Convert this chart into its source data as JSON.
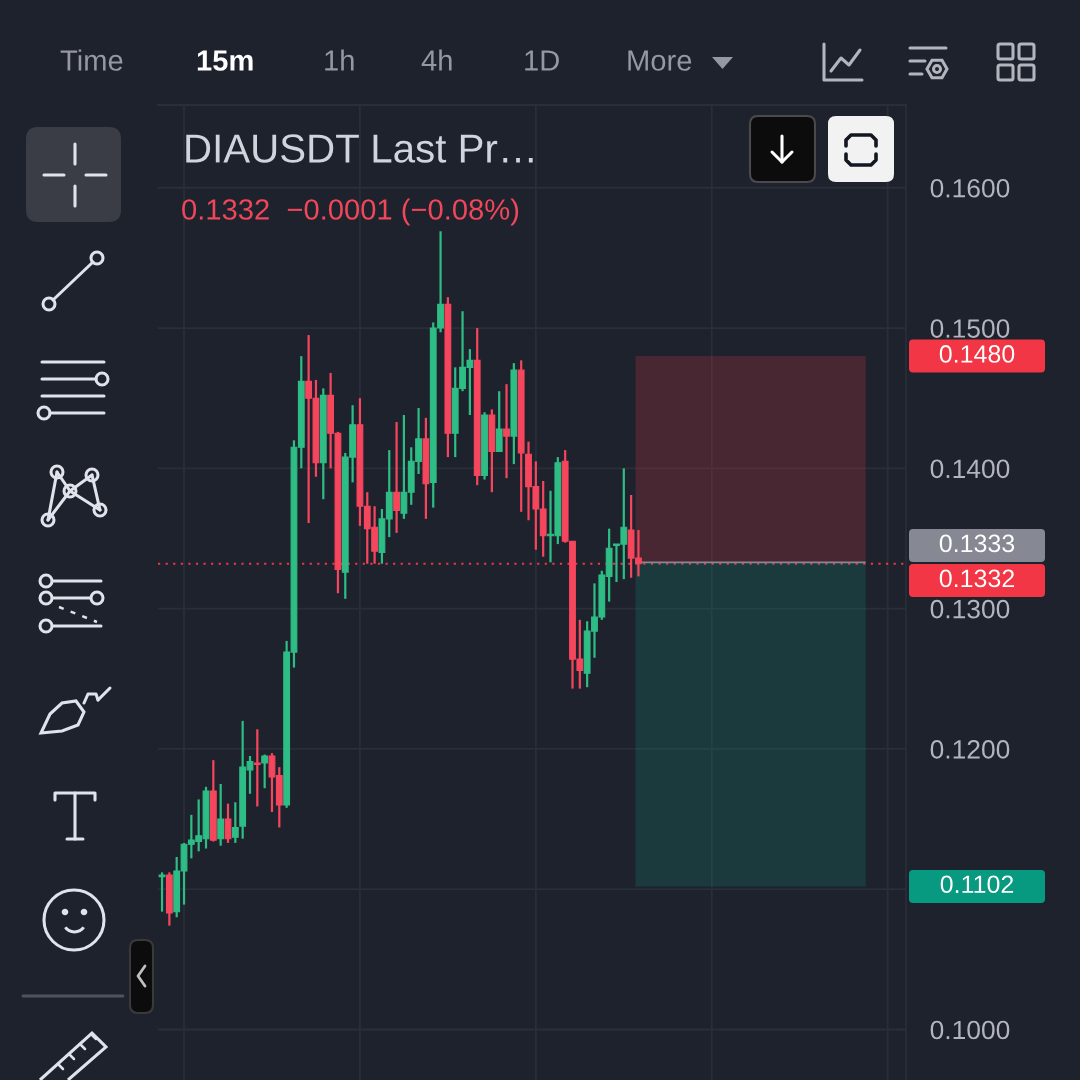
{
  "chart_data": {
    "type": "candlestick",
    "title": "DIAUSDT Last Pr…",
    "subtitle": "0.1332  −0.0001 (−0.08%)",
    "annotations": [
      "Time",
      "15m",
      "1h",
      "4h",
      "1D",
      "More"
    ],
    "categories": [
      null,
      null,
      null,
      null,
      null,
      null,
      null,
      null,
      null,
      null,
      null,
      null,
      null,
      null,
      null,
      null,
      null,
      null,
      null,
      null,
      null,
      null,
      null,
      null,
      null,
      null,
      null,
      null,
      null,
      null,
      null,
      null,
      null,
      null,
      null,
      null,
      null,
      null,
      null,
      null,
      null,
      null,
      null,
      null,
      null,
      null,
      null,
      null,
      null,
      null,
      null,
      null,
      null,
      null,
      null,
      null,
      null,
      null,
      null,
      null,
      null,
      null,
      null,
      null,
      null,
      null,
      null,
      null,
      null,
      null,
      null,
      null,
      null,
      null,
      null,
      null,
      null,
      null,
      null,
      null,
      null,
      null,
      null,
      null,
      null,
      null,
      null,
      null,
      null,
      null,
      null,
      null,
      null,
      null,
      null,
      null,
      null,
      null,
      null,
      null,
      null,
      null
    ],
    "ohlc": [
      [
        0.1109,
        0.1112,
        0.1084,
        0.111
      ],
      [
        0.111,
        0.1112,
        0.1074,
        0.1083
      ],
      [
        0.1084,
        0.1123,
        0.108,
        0.1113
      ],
      [
        0.1113,
        0.1133,
        0.1089,
        0.1132
      ],
      [
        0.1132,
        0.1153,
        0.1122,
        0.1135
      ],
      [
        0.1134,
        0.1164,
        0.1127,
        0.1138
      ],
      [
        0.1136,
        0.1173,
        0.1129,
        0.117
      ],
      [
        0.117,
        0.1192,
        0.1134,
        0.1135
      ],
      [
        0.1136,
        0.1175,
        0.1131,
        0.115
      ],
      [
        0.115,
        0.1161,
        0.1133,
        0.1136
      ],
      [
        0.1137,
        0.1162,
        0.1133,
        0.1144
      ],
      [
        0.1145,
        0.122,
        0.1136,
        0.1187
      ],
      [
        0.1185,
        0.1195,
        0.1168,
        0.1191
      ],
      [
        0.119,
        0.1214,
        0.1159,
        0.1189
      ],
      [
        0.119,
        0.1196,
        0.1172,
        0.1195
      ],
      [
        0.1195,
        0.1197,
        0.1155,
        0.118
      ],
      [
        0.1181,
        0.1187,
        0.1144,
        0.116
      ],
      [
        0.116,
        0.1277,
        0.1158,
        0.1269
      ],
      [
        0.1269,
        0.142,
        0.1258,
        0.1415
      ],
      [
        0.1415,
        0.148,
        0.14,
        0.1462
      ],
      [
        0.1462,
        0.1495,
        0.1361,
        0.145
      ],
      [
        0.145,
        0.1463,
        0.1394,
        0.1404
      ],
      [
        0.1404,
        0.1457,
        0.1378,
        0.1452
      ],
      [
        0.1452,
        0.1468,
        0.14,
        0.1425
      ],
      [
        0.1425,
        0.1426,
        0.1311,
        0.1328
      ],
      [
        0.1326,
        0.1411,
        0.1307,
        0.1408
      ],
      [
        0.1408,
        0.1445,
        0.139,
        0.1431
      ],
      [
        0.1431,
        0.145,
        0.1359,
        0.1373
      ],
      [
        0.1373,
        0.1383,
        0.1332,
        0.1357
      ],
      [
        0.1358,
        0.1373,
        0.1332,
        0.1341
      ],
      [
        0.134,
        0.1371,
        0.1332,
        0.1364
      ],
      [
        0.1364,
        0.1413,
        0.1351,
        0.1383
      ],
      [
        0.1383,
        0.1433,
        0.1354,
        0.137
      ],
      [
        0.1368,
        0.1438,
        0.1364,
        0.1383
      ],
      [
        0.1383,
        0.1415,
        0.1374,
        0.1405
      ],
      [
        0.1405,
        0.1443,
        0.1396,
        0.1421
      ],
      [
        0.1421,
        0.1436,
        0.1364,
        0.1389
      ],
      [
        0.139,
        0.1504,
        0.1372,
        0.15
      ],
      [
        0.15,
        0.1569,
        0.1497,
        0.1517
      ],
      [
        0.1517,
        0.1522,
        0.1408,
        0.1425
      ],
      [
        0.1425,
        0.1472,
        0.1408,
        0.1457
      ],
      [
        0.1457,
        0.1512,
        0.1455,
        0.1472
      ],
      [
        0.1472,
        0.1485,
        0.1438,
        0.1477
      ],
      [
        0.1477,
        0.15,
        0.1388,
        0.1395
      ],
      [
        0.1395,
        0.144,
        0.1392,
        0.1438
      ],
      [
        0.1438,
        0.1442,
        0.1383,
        0.1412
      ],
      [
        0.1412,
        0.1455,
        0.1412,
        0.1428
      ],
      [
        0.1428,
        0.146,
        0.1393,
        0.1423
      ],
      [
        0.1423,
        0.1475,
        0.1403,
        0.147
      ],
      [
        0.147,
        0.1477,
        0.1369,
        0.1411
      ],
      [
        0.141,
        0.1419,
        0.1363,
        0.1387
      ],
      [
        0.1387,
        0.1405,
        0.1342,
        0.1371
      ],
      [
        0.1371,
        0.1391,
        0.1337,
        0.1352
      ],
      [
        0.1352,
        0.1384,
        0.1333,
        0.1353
      ],
      [
        0.1352,
        0.1408,
        0.1346,
        0.1404
      ],
      [
        0.1405,
        0.1413,
        0.1347,
        0.1348
      ],
      [
        0.1348,
        0.1348,
        0.1243,
        0.1264
      ],
      [
        0.1264,
        0.1292,
        0.1243,
        0.1256
      ],
      [
        0.1254,
        0.1291,
        0.1244,
        0.1284
      ],
      [
        0.1284,
        0.1318,
        0.1265,
        0.1294
      ],
      [
        0.1294,
        0.1327,
        0.1292,
        0.1324
      ],
      [
        0.1323,
        0.1357,
        0.1305,
        0.1343
      ],
      [
        0.1345,
        0.1346,
        0.1319,
        0.1346
      ],
      [
        0.1346,
        0.14,
        0.1321,
        0.1358
      ],
      [
        0.1356,
        0.1381,
        0.1322,
        0.1336
      ],
      [
        0.1336,
        0.1356,
        0.1323,
        0.1332
      ],
      null,
      null,
      null,
      null,
      null,
      null,
      null,
      null,
      null,
      null,
      null,
      null,
      null,
      null,
      null,
      null,
      null,
      null,
      null,
      null,
      null,
      null,
      null,
      null,
      null,
      null,
      null,
      null,
      null,
      null,
      null,
      null,
      null,
      null,
      null,
      null
    ],
    "colors": [
      "#2ebd85",
      "#f6465d",
      "#2ebd85",
      "#2ebd85",
      "#2ebd85",
      "#2ebd85",
      "#2ebd85",
      "#f6465d",
      "#2ebd85",
      "#f6465d",
      "#2ebd85",
      "#2ebd85",
      "#2ebd85",
      "#f6465d",
      "#2ebd85",
      "#f6465d",
      "#f6465d",
      "#2ebd85",
      "#2ebd85",
      "#2ebd85",
      "#f6465d",
      "#f6465d",
      "#2ebd85",
      "#f6465d",
      "#f6465d",
      "#2ebd85",
      "#2ebd85",
      "#f6465d",
      "#f6465d",
      "#f6465d",
      "#2ebd85",
      "#2ebd85",
      "#f6465d",
      "#2ebd85",
      "#2ebd85",
      "#2ebd85",
      "#f6465d",
      "#2ebd85",
      "#2ebd85",
      "#f6465d",
      "#2ebd85",
      "#2ebd85",
      "#2ebd85",
      "#f6465d",
      "#2ebd85",
      "#f6465d",
      "#2ebd85",
      "#f6465d",
      "#2ebd85",
      "#f6465d",
      "#f6465d",
      "#f6465d",
      "#f6465d",
      "#2ebd85",
      "#2ebd85",
      "#f6465d",
      "#f6465d",
      "#f6465d",
      "#2ebd85",
      "#2ebd85",
      "#2ebd85",
      "#2ebd85",
      "#2ebd85",
      "#2ebd85",
      "#f6465d",
      "#f6465d",
      null,
      null,
      null,
      null,
      null,
      null,
      null,
      null,
      null,
      null,
      null,
      null,
      null,
      null,
      null,
      null,
      null,
      null,
      null,
      null,
      null,
      null,
      null,
      null,
      null,
      null,
      null,
      null,
      null,
      null,
      null,
      null,
      null,
      null,
      null,
      null
    ],
    "ylim": [
      0.0964,
      0.1659
    ],
    "yticks": [
      {
        "value": 0.1,
        "label": "0.1000"
      },
      {
        "value": 0.11,
        "label": null
      },
      {
        "value": 0.12,
        "label": "0.1200"
      },
      {
        "value": 0.13,
        "label": "0.1300"
      },
      {
        "value": 0.14,
        "label": "0.1400"
      },
      {
        "value": 0.15,
        "label": "0.1500"
      },
      {
        "value": 0.16,
        "label": "0.1600"
      }
    ],
    "tick_labels": "y",
    "grid": true,
    "ref_lines": [
      {
        "axis": "y",
        "value": 0.1332,
        "label": "0.1332",
        "color": "#f23645",
        "line_style": "dotted"
      },
      {
        "axis": "y",
        "value": 0.1333,
        "label": "0.1333",
        "color": "#868993",
        "line_style": "solid"
      }
    ],
    "bands": [
      {
        "axis": "y",
        "from": 0.148,
        "to": 0.1333,
        "label": "0.1480",
        "color": "#f23645"
      },
      {
        "axis": "y",
        "from": 0.1102,
        "to": 0.1333,
        "label": "0.1102",
        "color": "#089981"
      }
    ]
  }
}
